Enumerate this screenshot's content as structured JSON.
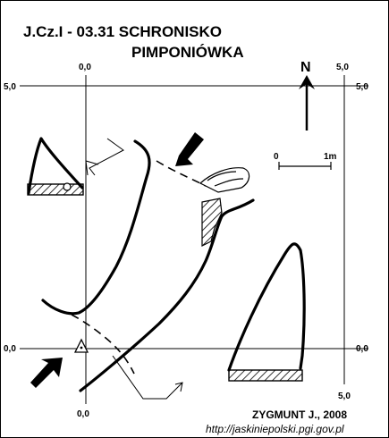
{
  "title": {
    "line1": "J.Cz.I - 03.31 SCHRONISKO",
    "line2": "PIMPONIÓWKA"
  },
  "grid_labels": {
    "top_x": "0,0",
    "top_y": "5,0",
    "left_y_top": "5,0",
    "left_y_bottom": "0,0",
    "right_y_top": "5,0",
    "right_y_bottom": "0,0",
    "top_right_x": "5,0",
    "bottom_x": "0,0",
    "bottom_right_x": "5,0"
  },
  "north": {
    "label": "N"
  },
  "scale": {
    "start": "0",
    "end": "1m"
  },
  "credit": "ZYGMUNT J., 2008",
  "url": "http://jaskiniepolski.pgi.gov.pl",
  "colors": {
    "ink": "#000000",
    "background": "#ffffff"
  },
  "icons": [
    "entrance-arrow-icon",
    "datum-triangle-icon",
    "north-arrow-icon"
  ]
}
